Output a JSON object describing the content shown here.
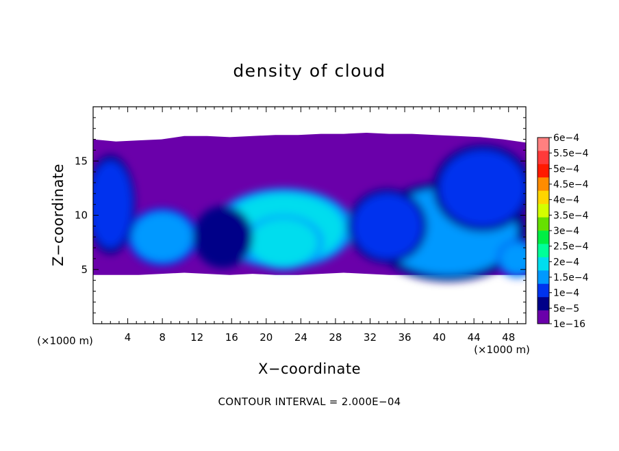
{
  "chart_data": {
    "type": "heatmap",
    "title": "density of cloud",
    "xlabel": "X−coordinate",
    "ylabel": "Z−coordinate",
    "x_unit_left": "(×1000 m)",
    "x_unit_right": "(×1000 m)",
    "xlim": [
      0,
      50
    ],
    "ylim": [
      0,
      20
    ],
    "x_ticks": [
      4,
      8,
      12,
      16,
      20,
      24,
      28,
      32,
      36,
      40,
      44,
      48
    ],
    "y_ticks": [
      5,
      10,
      15
    ],
    "footer": "CONTOUR INTERVAL = 2.000E−04",
    "colorbar": {
      "labels": [
        "6e−4",
        "5.5e−4",
        "5e−4",
        "4.5e−4",
        "4e−4",
        "3.5e−4",
        "3e−4",
        "2.5e−4",
        "2e−4",
        "1.5e−4",
        "1e−4",
        "5e−5",
        "1e−16"
      ],
      "colors": [
        "#ff8080",
        "#ff3a3a",
        "#ff1a00",
        "#ff8c00",
        "#ffd500",
        "#d4ff00",
        "#66e000",
        "#00ee44",
        "#00ff99",
        "#00ddee",
        "#0099ff",
        "#0033ee",
        "#000088",
        "#6a00aa"
      ]
    },
    "cloud_top_z": [
      17,
      16.8,
      16.9,
      17,
      17.3,
      17.3,
      17.2,
      17.3,
      17.4,
      17.4,
      17.5,
      17.5,
      17.6,
      17.5,
      17.5,
      17.4,
      17.3,
      17.2,
      17.0,
      16.7
    ],
    "cloud_base_z": [
      4.5,
      4.5,
      4.5,
      4.6,
      4.7,
      4.6,
      4.5,
      4.6,
      4.5,
      4.5,
      4.6,
      4.7,
      4.6,
      4.5,
      4.5,
      4.5,
      4.6,
      4.5,
      4.5,
      4.5
    ],
    "cells": [
      {
        "x": 22,
        "z": 8.8,
        "rx": 7,
        "rz": 3.2,
        "level": 1.9
      },
      {
        "x": 22,
        "z": 7.5,
        "rx": 4,
        "rz": 2.2,
        "level": 2.1
      },
      {
        "x": 8,
        "z": 8,
        "rx": 3.5,
        "rz": 2.3,
        "level": 1.6
      },
      {
        "x": 41,
        "z": 8.5,
        "rx": 8,
        "rz": 4,
        "level": 1.3
      },
      {
        "x": 45,
        "z": 12.5,
        "rx": 5,
        "rz": 3.5,
        "level": 1.2
      },
      {
        "x": 2,
        "z": 11,
        "rx": 2.5,
        "rz": 4,
        "level": 1.0
      },
      {
        "x": 34,
        "z": 9,
        "rx": 4,
        "rz": 3,
        "level": 1.0
      },
      {
        "x": 49,
        "z": 6,
        "rx": 2,
        "rz": 1.5,
        "level": 1.4
      },
      {
        "x": 15,
        "z": 8,
        "rx": 3,
        "rz": 2.5,
        "level": 0.7
      }
    ]
  }
}
